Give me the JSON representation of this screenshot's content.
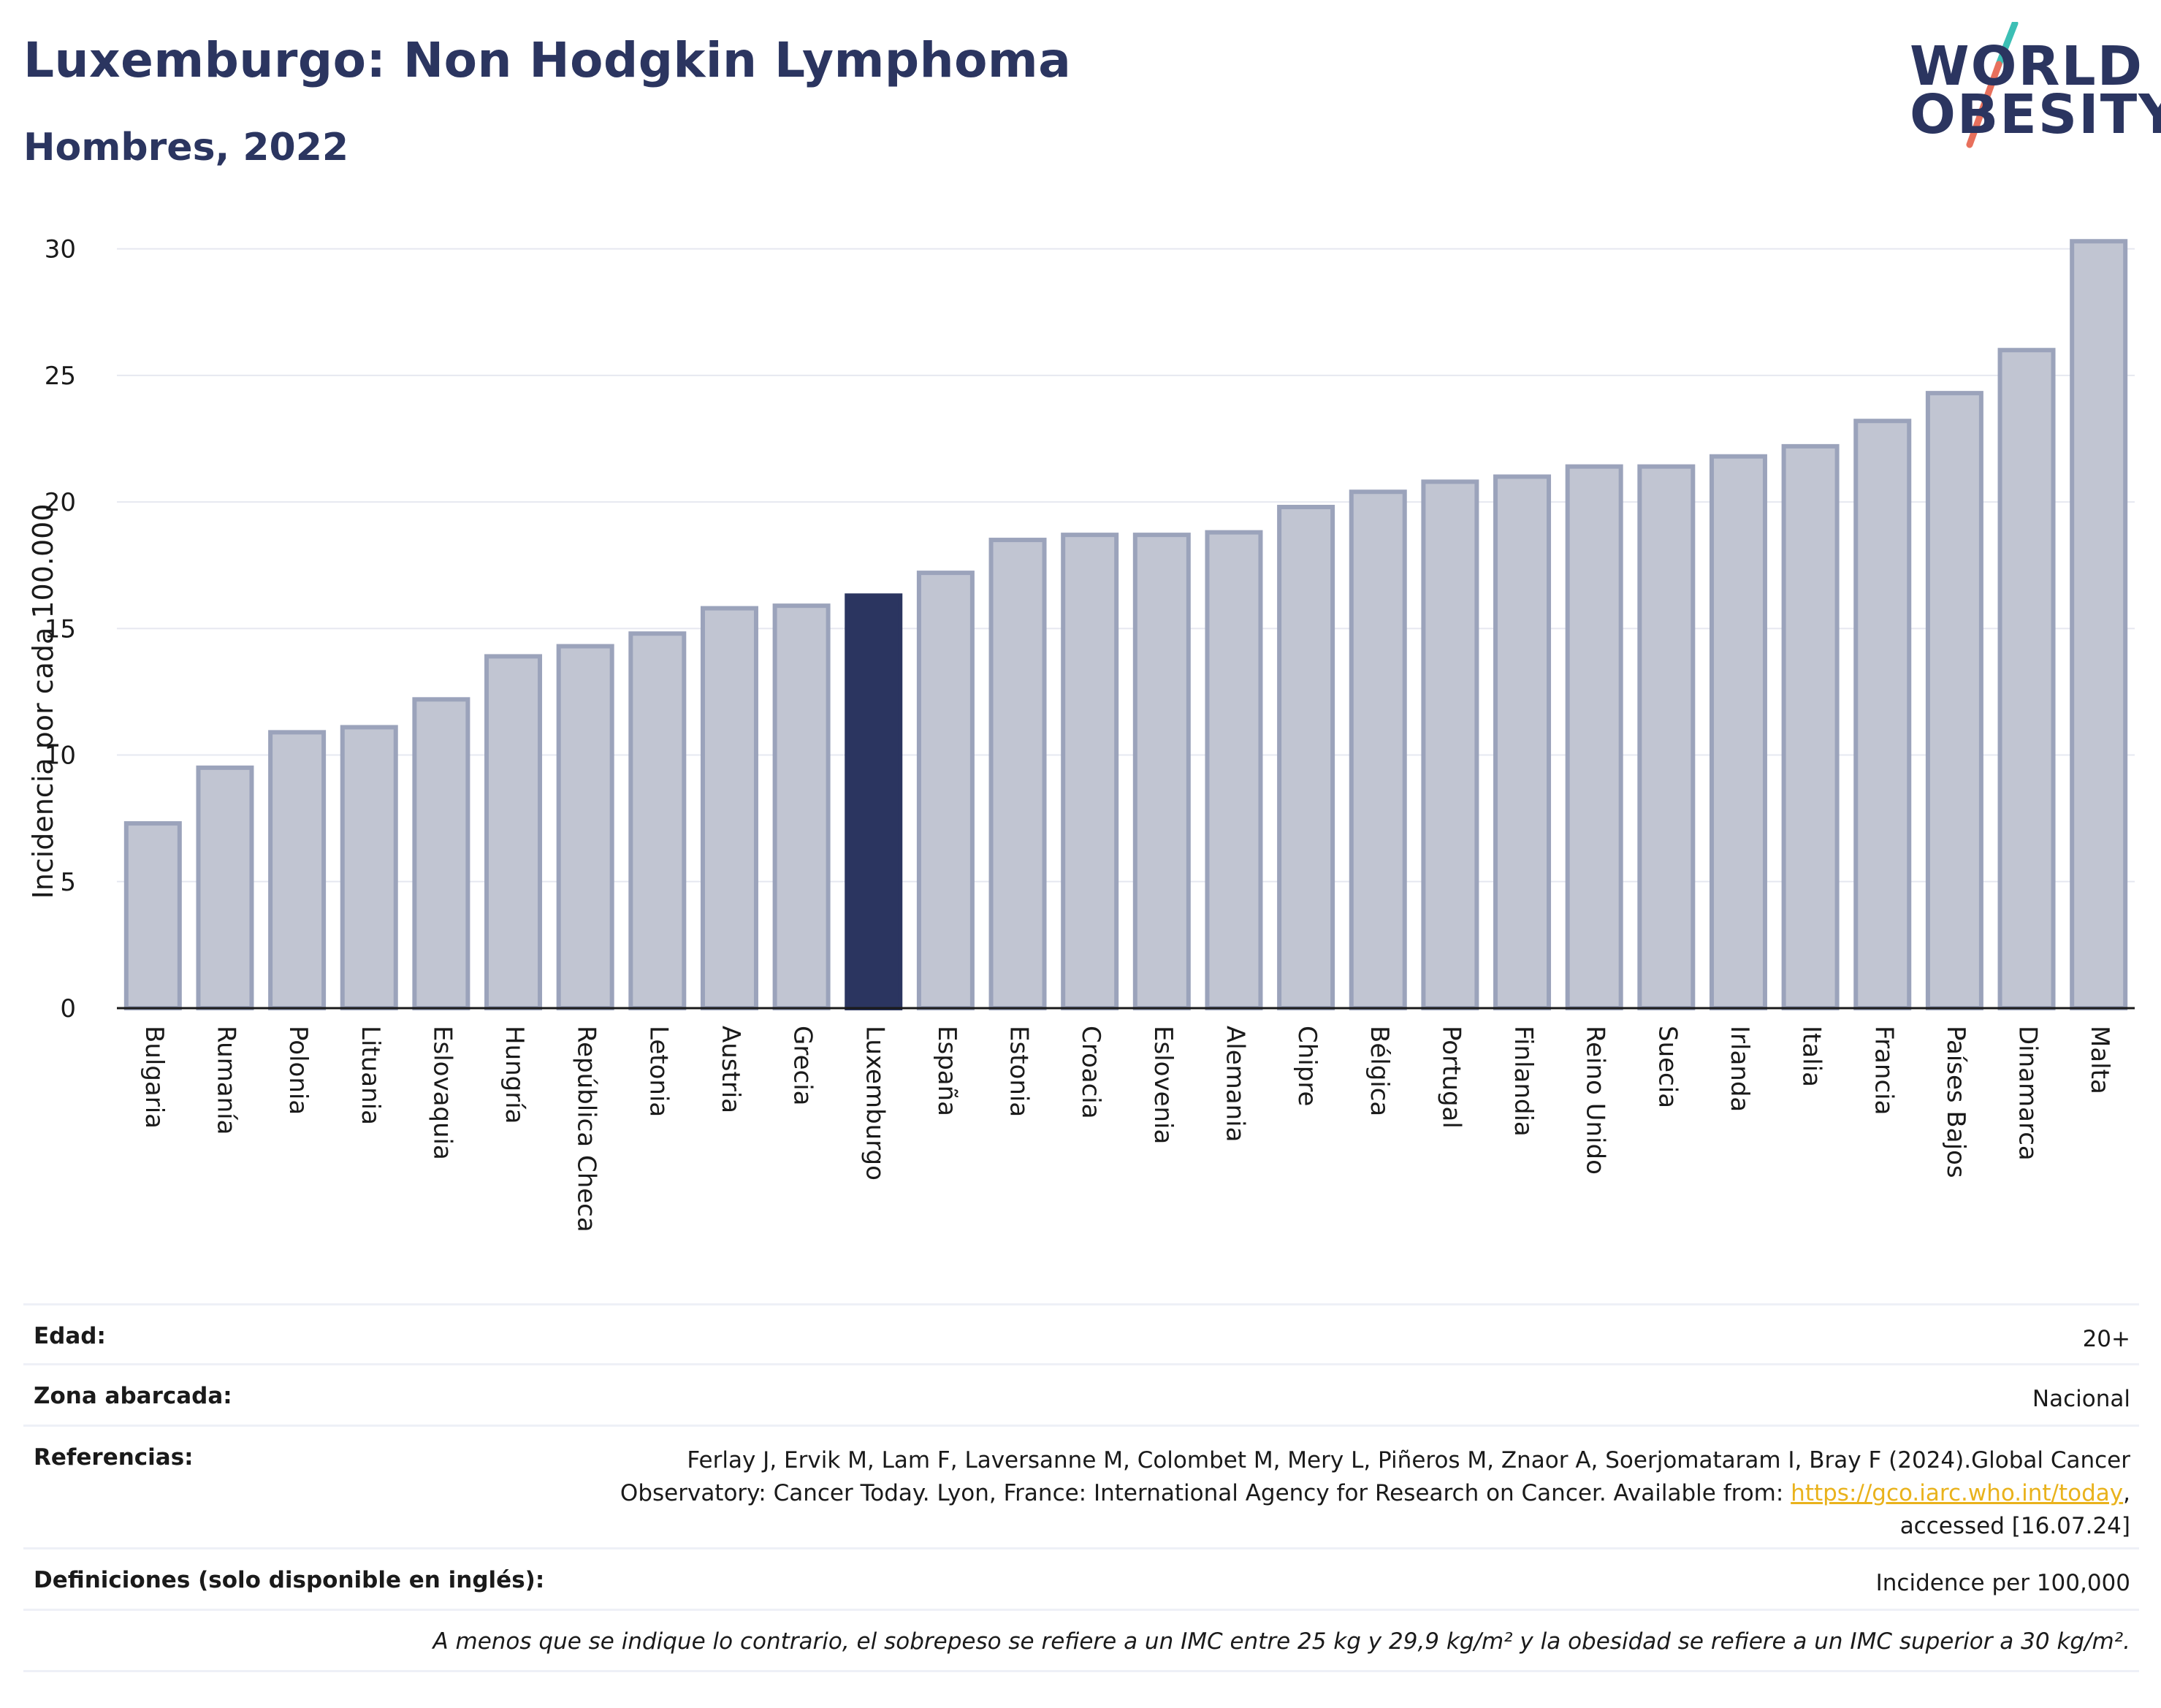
{
  "header": {
    "title": "Luxemburgo: Non Hodgkin Lymphoma",
    "subtitle": "Hombres, 2022"
  },
  "logo": {
    "line1": "WORLD",
    "line2": "OBESITY",
    "slash_colors": [
      "#3cbfb5",
      "#e8705c"
    ]
  },
  "colors": {
    "bar_default": "#c1c5d2",
    "bar_default_border": "#9ba3bb",
    "bar_highlight": "#2b3560",
    "text_dark": "#2b3560",
    "link": "#e9b21c"
  },
  "chart_data": {
    "type": "bar",
    "ylabel": "Incidencia por cada 100.000",
    "ylim": [
      0,
      31
    ],
    "yticks": [
      0,
      5,
      10,
      15,
      20,
      25,
      30
    ],
    "grid": true,
    "highlight": "Luxemburgo",
    "categories": [
      "Bulgaria",
      "Rumanía",
      "Polonia",
      "Lituania",
      "Eslovaquia",
      "Hungría",
      "República Checa",
      "Letonia",
      "Austria",
      "Grecia",
      "Luxemburgo",
      "España",
      "Estonia",
      "Croacia",
      "Eslovenia",
      "Alemania",
      "Chipre",
      "Bélgica",
      "Portugal",
      "Finlandia",
      "Reino Unido",
      "Suecia",
      "Irlanda",
      "Italia",
      "Francia",
      "Países Bajos",
      "Dinamarca",
      "Malta"
    ],
    "values": [
      7.3,
      9.5,
      10.9,
      11.1,
      12.2,
      13.9,
      14.3,
      14.8,
      15.8,
      15.9,
      16.3,
      17.2,
      18.5,
      18.7,
      18.7,
      18.8,
      19.8,
      20.4,
      20.8,
      21.0,
      21.4,
      21.4,
      21.8,
      22.2,
      23.2,
      24.3,
      26.0,
      30.3
    ]
  },
  "info": {
    "age_label": "Edad:",
    "age_value": "20+",
    "area_label": "Zona abarcada:",
    "area_value": "Nacional",
    "refs_label": "Referencias:",
    "refs_line1": "Ferlay J, Ervik M, Lam F, Laversanne M, Colombet M, Mery L, Piñeros M, Znaor A, Soerjomataram I, Bray F (2024).Global Cancer",
    "refs_line2_pre": "Observatory: Cancer Today. Lyon, France: International Agency for Research on Cancer. Available from: ",
    "refs_link": "https://gco.iarc.who.int/today",
    "refs_line2_post": ",",
    "refs_line3": "accessed [16.07.24]",
    "defs_label": "Definiciones (solo disponible en inglés):",
    "defs_value": "Incidence per 100,000",
    "note": "A menos que se indique lo contrario, el sobrepeso se refiere a un IMC entre 25 kg y 29,9 kg/m² y la obesidad se refiere a un IMC superior a 30 kg/m²."
  }
}
